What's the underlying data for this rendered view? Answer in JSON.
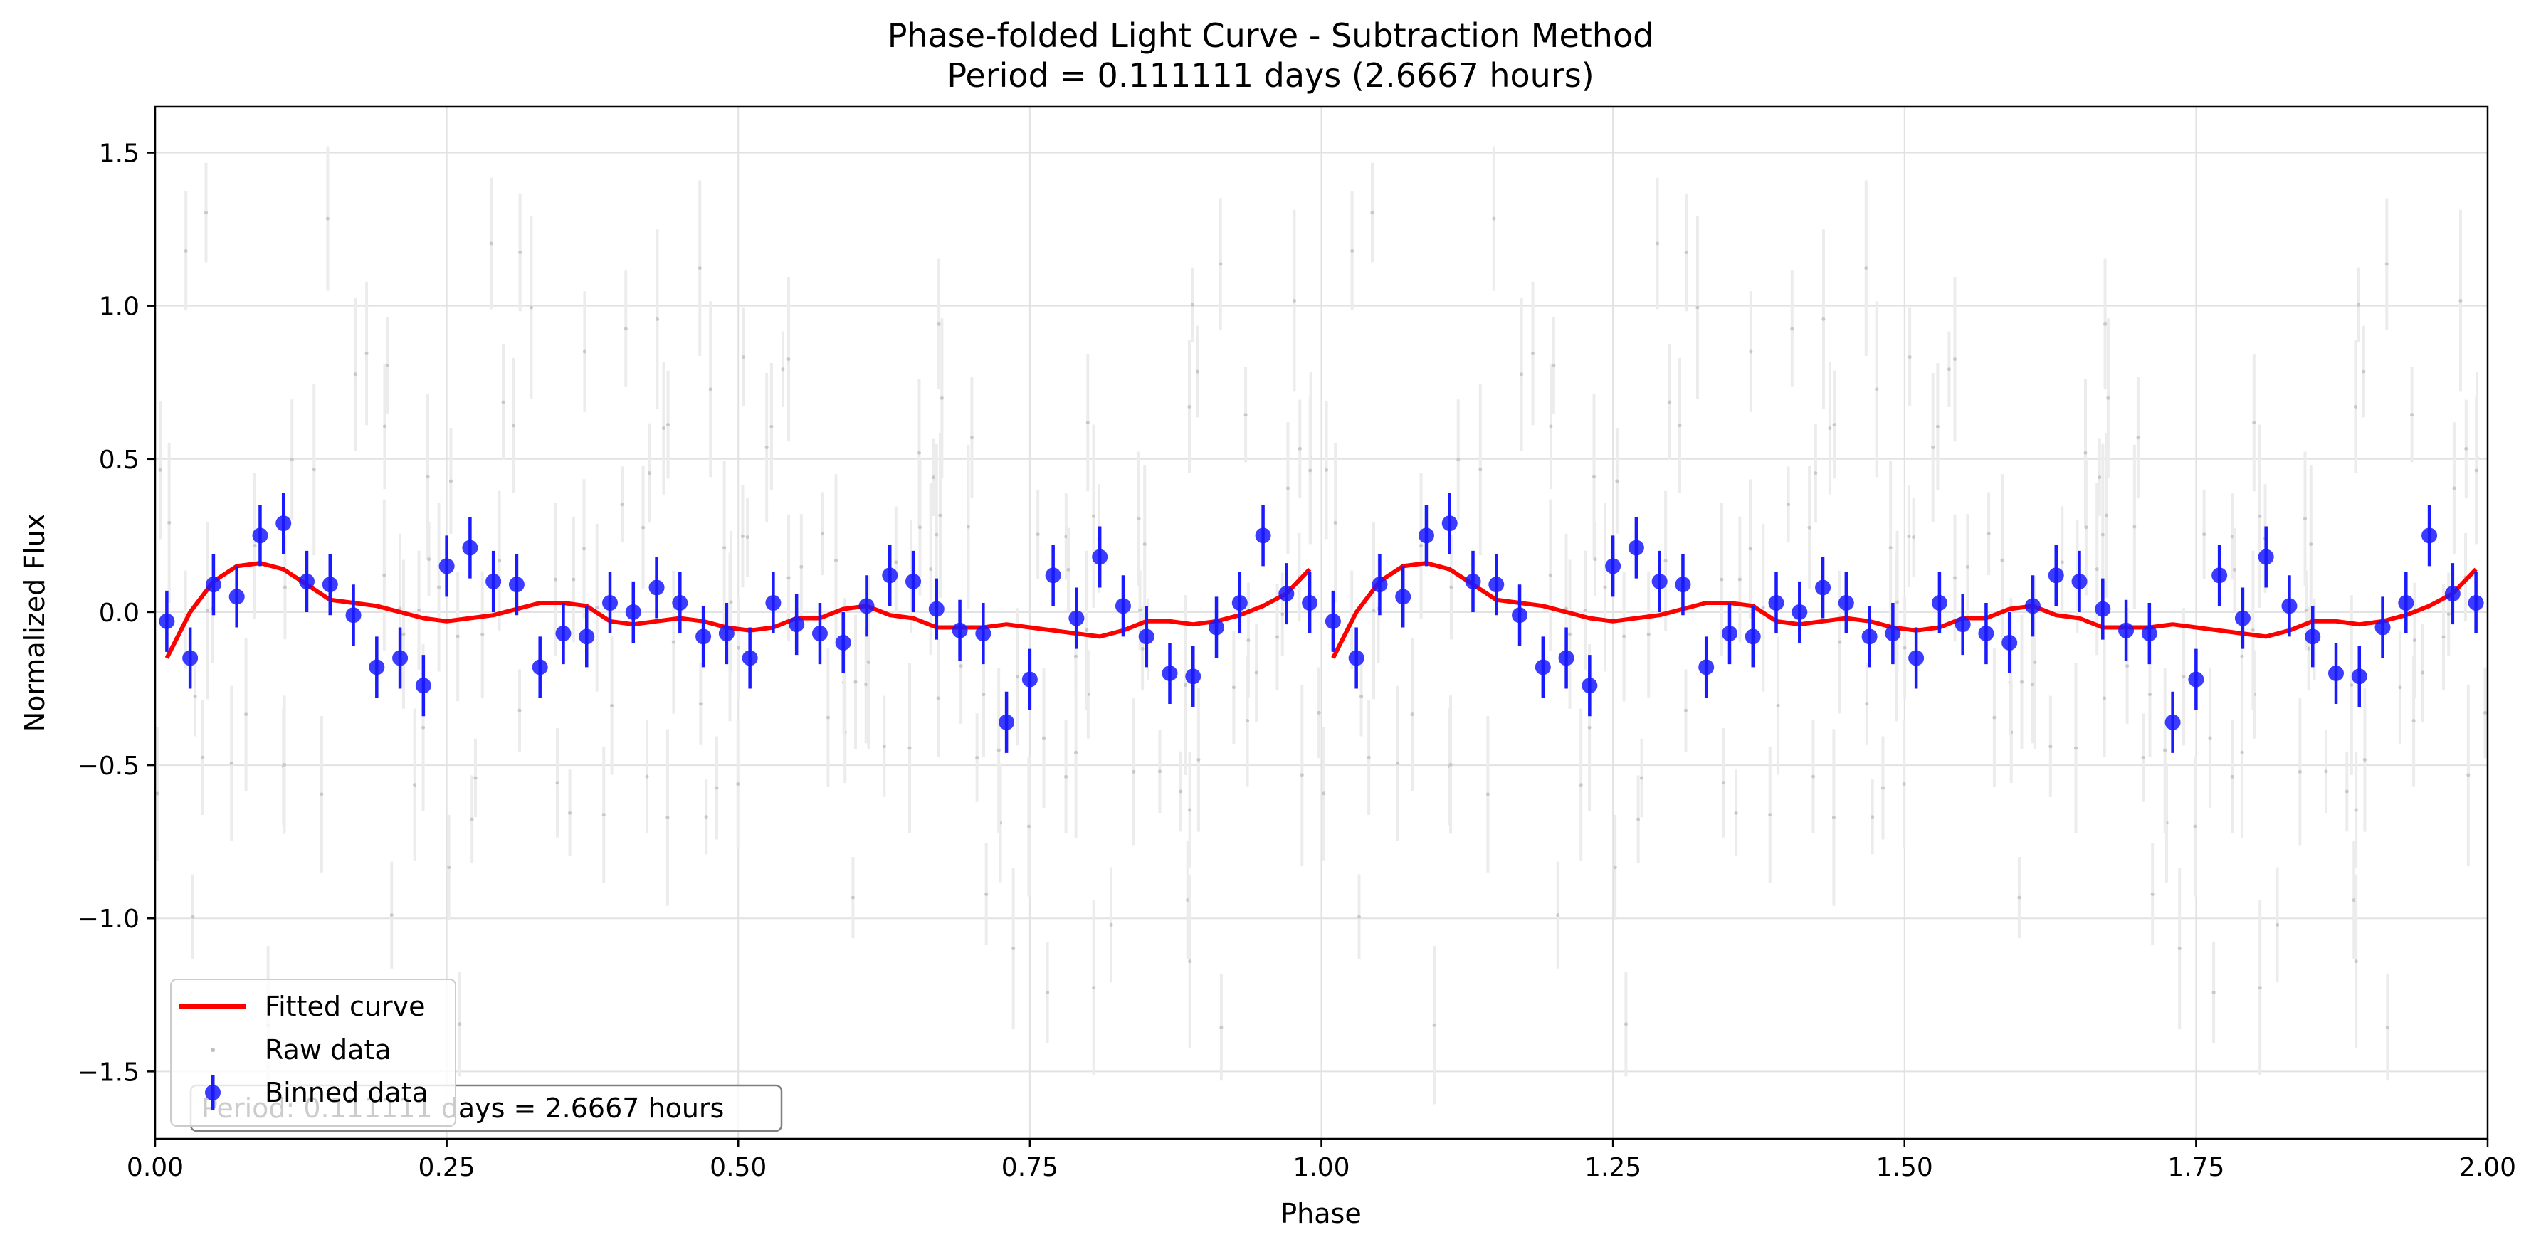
{
  "chart_data": {
    "type": "scatter",
    "title_line1": "Phase-folded Light Curve - Subtraction Method",
    "title_line2": "Period = 0.111111 days (2.6667 hours)",
    "xlabel": "Phase",
    "ylabel": "Normalized Flux",
    "xlim": [
      0.0,
      2.0
    ],
    "ylim": [
      -1.72,
      1.65
    ],
    "x_ticks": [
      0.0,
      0.25,
      0.5,
      0.75,
      1.0,
      1.25,
      1.5,
      1.75,
      2.0
    ],
    "x_tick_labels": [
      "0.00",
      "0.25",
      "0.50",
      "0.75",
      "1.00",
      "1.25",
      "1.50",
      "1.75",
      "2.00"
    ],
    "y_ticks": [
      -1.5,
      -1.0,
      -0.5,
      0.0,
      0.5,
      1.0,
      1.5
    ],
    "y_tick_labels": [
      "−1.5",
      "−1.0",
      "−0.5",
      "0.0",
      "0.5",
      "1.0",
      "1.5"
    ],
    "grid": true,
    "legend_position": "lower-left",
    "legend": [
      {
        "label": "Fitted curve",
        "style": "line",
        "color": "#ff0000"
      },
      {
        "label": "Raw data",
        "style": "point",
        "color": "#c0c0c0"
      },
      {
        "label": "Binned data",
        "style": "errorbar-point",
        "color": "#0000ff"
      }
    ],
    "annotation": "Period: 0.111111 days = 2.6667 hours",
    "colors": {
      "fitted": "#ff0000",
      "binned": "#1a1aff",
      "raw": "#c8c8c8",
      "grid": "#e2e2e2"
    },
    "series": [
      {
        "name": "Binned data",
        "x": [
          0.01,
          0.03,
          0.05,
          0.07,
          0.09,
          0.11,
          0.13,
          0.15,
          0.17,
          0.19,
          0.21,
          0.23,
          0.25,
          0.27,
          0.29,
          0.31,
          0.33,
          0.35,
          0.37,
          0.39,
          0.41,
          0.43,
          0.45,
          0.47,
          0.49,
          0.51,
          0.53,
          0.55,
          0.57,
          0.59,
          0.61,
          0.63,
          0.65,
          0.67,
          0.69,
          0.71,
          0.73,
          0.75,
          0.77,
          0.79,
          0.81,
          0.83,
          0.85,
          0.87,
          0.89,
          0.91,
          0.93,
          0.95,
          0.97,
          0.99
        ],
        "y": [
          -0.03,
          -0.15,
          0.09,
          0.05,
          0.25,
          0.29,
          0.1,
          0.09,
          -0.01,
          -0.18,
          -0.15,
          -0.24,
          0.15,
          0.21,
          0.1,
          0.09,
          -0.18,
          -0.07,
          -0.08,
          0.03,
          0.0,
          0.08,
          0.03,
          -0.08,
          -0.07,
          -0.15,
          0.03,
          -0.04,
          -0.07,
          -0.1,
          0.02,
          0.12,
          0.1,
          0.01,
          -0.06,
          -0.07,
          -0.36,
          -0.22,
          0.12,
          -0.02,
          0.18,
          0.02,
          -0.08,
          -0.2,
          -0.21,
          -0.05,
          0.03,
          0.25,
          0.06,
          0.03
        ],
        "yerr": 0.1
      },
      {
        "name": "Fitted curve",
        "x": [
          0.01,
          0.03,
          0.05,
          0.07,
          0.09,
          0.11,
          0.13,
          0.15,
          0.17,
          0.19,
          0.21,
          0.23,
          0.25,
          0.27,
          0.29,
          0.31,
          0.33,
          0.35,
          0.37,
          0.39,
          0.41,
          0.43,
          0.45,
          0.47,
          0.49,
          0.51,
          0.53,
          0.55,
          0.57,
          0.59,
          0.61,
          0.63,
          0.65,
          0.67,
          0.69,
          0.71,
          0.73,
          0.75,
          0.77,
          0.79,
          0.81,
          0.83,
          0.85,
          0.87,
          0.89,
          0.91,
          0.93,
          0.95,
          0.97,
          0.99
        ],
        "y": [
          -0.15,
          0.0,
          0.1,
          0.15,
          0.16,
          0.14,
          0.09,
          0.04,
          0.03,
          0.02,
          0.0,
          -0.02,
          -0.03,
          -0.02,
          -0.01,
          0.01,
          0.03,
          0.03,
          0.02,
          -0.03,
          -0.04,
          -0.03,
          -0.02,
          -0.03,
          -0.05,
          -0.06,
          -0.05,
          -0.02,
          -0.02,
          0.01,
          0.02,
          -0.01,
          -0.02,
          -0.05,
          -0.05,
          -0.05,
          -0.04,
          -0.05,
          -0.06,
          -0.07,
          -0.08,
          -0.06,
          -0.03,
          -0.03,
          -0.04,
          -0.03,
          -0.01,
          0.02,
          0.06,
          0.14
        ]
      }
    ]
  }
}
